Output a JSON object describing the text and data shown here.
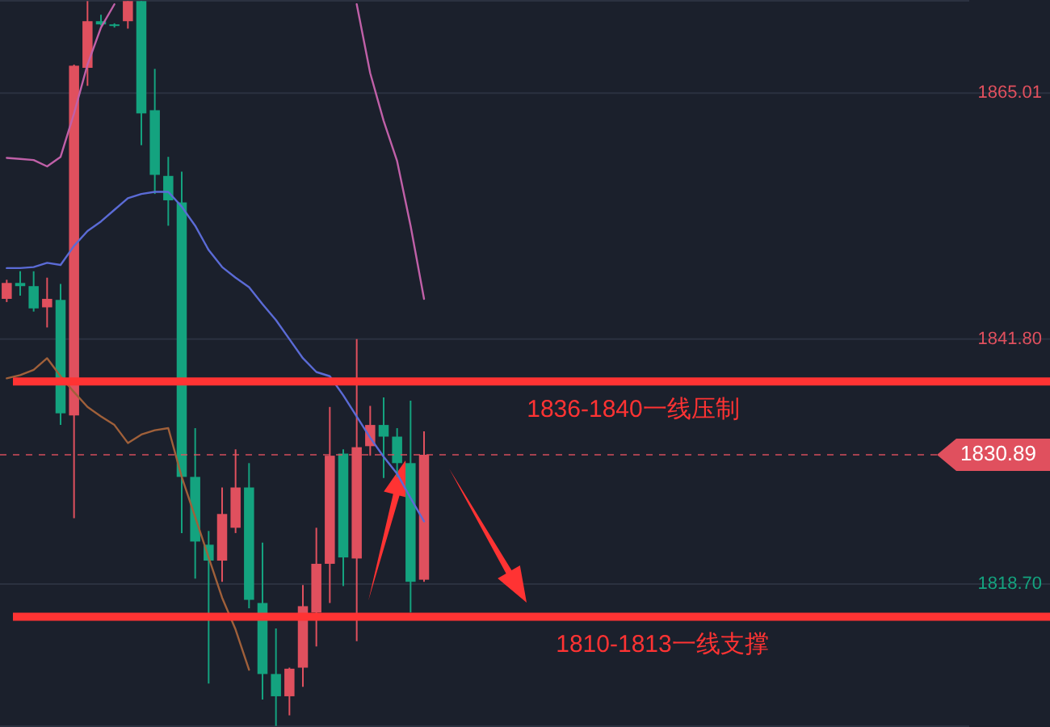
{
  "chart_data": {
    "type": "candlestick",
    "categories": [
      null,
      null,
      null,
      null,
      null,
      null,
      null,
      null,
      null,
      null,
      null,
      null,
      null,
      null,
      null,
      null,
      null,
      null,
      null,
      null,
      null,
      null,
      null,
      null,
      null,
      null,
      null,
      null,
      null,
      null,
      null,
      null,
      null,
      null,
      null,
      null,
      null,
      null,
      null,
      null,
      null,
      null,
      null,
      null,
      null,
      null,
      null,
      null,
      null,
      null,
      null,
      null,
      null,
      null,
      null,
      null,
      null,
      null,
      null,
      null,
      null,
      null,
      null,
      null,
      null,
      null,
      null,
      null,
      null,
      null,
      null,
      null
    ],
    "ohlc": [
      [
        1845.6,
        1847.4,
        1845.3,
        1847.1
      ],
      [
        1847.1,
        1848.2,
        1845.9,
        1846.8
      ],
      [
        1846.8,
        1848.2,
        1844.4,
        1844.7
      ],
      [
        1844.8,
        1847.6,
        1842.9,
        1845.6
      ],
      [
        1845.5,
        1847.0,
        1833.7,
        1834.8
      ],
      [
        1834.6,
        1867.7,
        1824.9,
        1867.6
      ],
      [
        1867.4,
        1873.7,
        1865.7,
        1871.8
      ],
      [
        1871.8,
        1872.4,
        1871.4,
        1871.5
      ],
      [
        1871.5,
        1871.6,
        1871.2,
        1871.4
      ],
      [
        1871.8,
        1873.7,
        1871.1,
        1873.7
      ],
      [
        1873.7,
        1873.7,
        1860.1,
        1863.1
      ],
      [
        1863.4,
        1867.3,
        1855.5,
        1857.3
      ],
      [
        1857.2,
        1859.0,
        1852.5,
        1854.9
      ],
      [
        1854.7,
        1857.6,
        1823.5,
        1828.8
      ],
      [
        1828.8,
        1833.4,
        1819.2,
        1822.7
      ],
      [
        1822.4,
        1823.7,
        1809.3,
        1820.9
      ],
      [
        1820.9,
        1827.8,
        1818.9,
        1825.3
      ],
      [
        1824.0,
        1831.4,
        1823.5,
        1827.8
      ],
      [
        1827.8,
        1830.1,
        1816.4,
        1817.2
      ],
      [
        1816.9,
        1822.6,
        1807.8,
        1810.2
      ],
      [
        1810.2,
        1814.5,
        1805.3,
        1808.1
      ],
      [
        1808.1,
        1810.8,
        1806.3,
        1810.7
      ],
      [
        1810.8,
        1818.6,
        1809.0,
        1816.6
      ],
      [
        1816.0,
        1824.0,
        1812.8,
        1820.6
      ],
      [
        1820.6,
        1835.4,
        1816.9,
        1830.8
      ],
      [
        1831.0,
        1831.4,
        1818.5,
        1821.2
      ],
      [
        1821.1,
        1841.8,
        1813.3,
        1831.6
      ],
      [
        1831.7,
        1835.5,
        1830.8,
        1833.7
      ],
      [
        1833.7,
        1836.3,
        1828.7,
        1832.6
      ],
      [
        1832.6,
        1833.4,
        1828.8,
        1830.1
      ],
      [
        1830.1,
        1836.0,
        1816.0,
        1818.9
      ],
      [
        1819.1,
        1833.1,
        1818.9,
        1830.89
      ],
      null,
      null,
      null,
      null,
      null,
      null,
      null,
      null,
      null,
      null,
      null,
      null,
      null,
      null,
      null,
      null,
      null,
      null,
      null,
      null,
      null,
      null,
      null,
      null,
      null,
      null,
      null,
      null,
      null,
      null,
      null,
      null,
      null,
      null,
      null,
      null,
      null,
      null,
      null,
      null
    ],
    "colors": [
      "#e0505e",
      "#14a37f",
      "#14a37f",
      "#e0505e",
      "#14a37f",
      "#e0505e",
      "#e0505e",
      "#14a37f",
      "#14a37f",
      "#e0505e",
      "#14a37f",
      "#14a37f",
      "#14a37f",
      "#14a37f",
      "#14a37f",
      "#14a37f",
      "#e0505e",
      "#e0505e",
      "#14a37f",
      "#14a37f",
      "#14a37f",
      "#e0505e",
      "#e0505e",
      "#e0505e",
      "#e0505e",
      "#14a37f",
      "#e0505e",
      "#e0505e",
      "#14a37f",
      "#14a37f",
      "#14a37f",
      "#e0505e",
      null,
      null,
      null,
      null,
      null,
      null,
      null,
      null,
      null,
      null,
      null,
      null,
      null,
      null,
      null,
      null,
      null,
      null,
      null,
      null,
      null,
      null,
      null,
      null,
      null,
      null,
      null,
      null,
      null,
      null,
      null,
      null,
      null,
      null,
      null,
      null,
      null,
      null,
      null,
      null
    ],
    "series": [
      {
        "type": "line",
        "color": "#c060a8",
        "values": [
          1858.9,
          1858.8,
          1858.7,
          1858.1,
          1859.0,
          1863.1,
          1867.7,
          1871.2,
          1873.4,
          null,
          null,
          null,
          null,
          null,
          null,
          null,
          null,
          null,
          null,
          null,
          null,
          null,
          null,
          null,
          null,
          null,
          1873.4,
          1866.9,
          1862.4,
          1858.6,
          1852.5,
          1845.6,
          null,
          null,
          null,
          null,
          null,
          null,
          null,
          null,
          null,
          null,
          null,
          null,
          null,
          null,
          null,
          null,
          null,
          null,
          null,
          null,
          null,
          null,
          null,
          null,
          null,
          null,
          null,
          null,
          null,
          null,
          null,
          null,
          null,
          null,
          null,
          null,
          null,
          null,
          null,
          null
        ]
      },
      {
        "type": "line",
        "color": "#5b6bd6",
        "values": [
          1848.5,
          1848.5,
          1848.6,
          1849.0,
          1848.8,
          1850.6,
          1852.0,
          1852.9,
          1854.0,
          1855.1,
          1855.5,
          1855.7,
          1855.7,
          1854.3,
          1852.5,
          1850.2,
          1848.6,
          1847.6,
          1846.7,
          1845.1,
          1843.6,
          1841.8,
          1840.0,
          1838.7,
          1838.3,
          1836.5,
          1834.5,
          1832.5,
          1830.7,
          1829.1,
          1826.8,
          1824.6,
          null,
          null,
          null,
          null,
          null,
          null,
          null,
          null,
          null,
          null,
          null,
          null,
          null,
          null,
          null,
          null,
          null,
          null,
          null,
          null,
          null,
          null,
          null,
          null,
          null,
          null,
          null,
          null,
          null,
          null,
          null,
          null,
          null,
          null,
          null,
          null,
          null,
          null,
          null,
          null
        ]
      },
      {
        "type": "line",
        "color": "#a0603a",
        "values": [
          1838.1,
          1838.4,
          1838.9,
          1840.0,
          1838.3,
          1836.8,
          1835.4,
          1834.5,
          1833.7,
          1832.0,
          1832.8,
          1833.2,
          1833.4,
          1828.8,
          1825.0,
          1821.2,
          1817.4,
          1814.4,
          1810.6,
          null,
          null,
          null,
          null,
          null,
          null,
          null,
          null,
          null,
          null,
          null,
          null,
          null,
          null,
          null,
          null,
          null,
          null,
          null,
          null,
          null,
          null,
          null,
          null,
          null,
          null,
          null,
          null,
          null,
          null,
          null,
          null,
          null,
          null,
          null,
          null,
          null,
          null,
          null,
          null,
          null,
          null,
          null,
          null,
          null,
          null,
          null,
          null,
          null,
          null,
          null,
          null,
          null
        ]
      }
    ],
    "ylim": [
      1805.2,
      1873.8
    ],
    "yticks": [
      {
        "value": 1865.01,
        "label": "1865.01"
      },
      {
        "value": 1841.8,
        "label": "1841.80"
      },
      {
        "value": 1818.7,
        "label": "1818.70"
      }
    ],
    "grid": "y",
    "ref_lines": [
      {
        "axis": "y",
        "value": 1837.8,
        "label": "1836-1840一线压制",
        "color": "#ff3333",
        "line_style": "solid"
      },
      {
        "axis": "y",
        "value": 1830.89,
        "label": "1830.89",
        "color": "#e0505e",
        "line_style": "dashed"
      },
      {
        "axis": "y",
        "value": 1815.6,
        "label": "1810-1813一线支撑",
        "color": "#ff3333",
        "line_style": "solid"
      }
    ]
  }
}
